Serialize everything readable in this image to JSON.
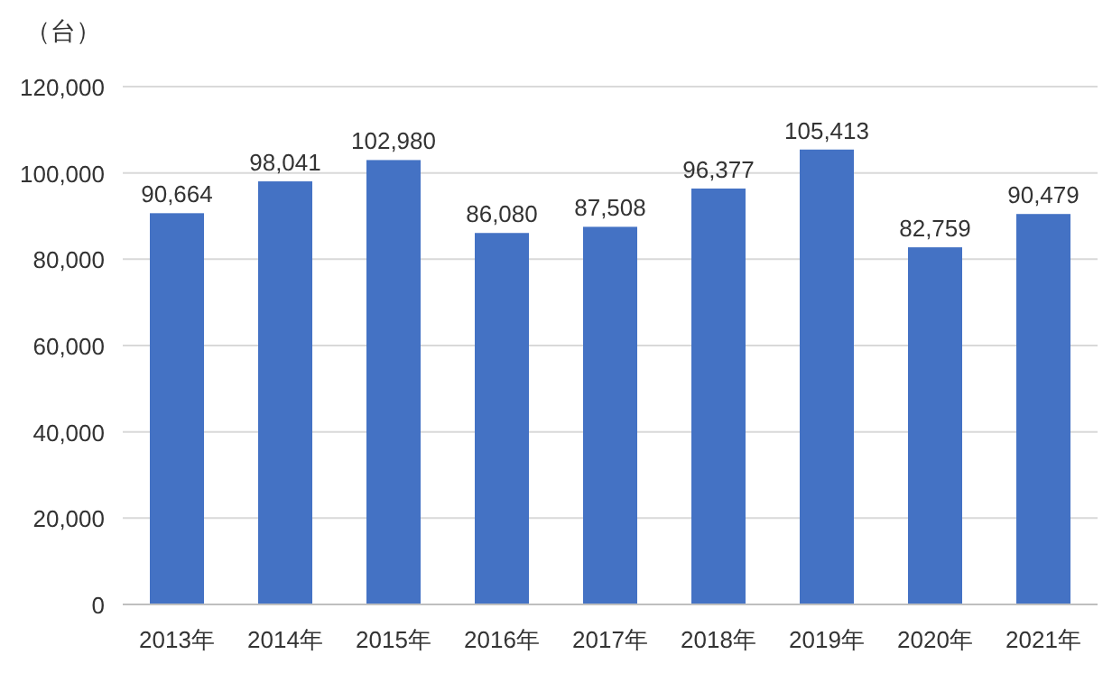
{
  "chart_data": {
    "type": "bar",
    "ylabel": "（台）",
    "categories": [
      "2013年",
      "2014年",
      "2015年",
      "2016年",
      "2017年",
      "2018年",
      "2019年",
      "2020年",
      "2021年"
    ],
    "values": [
      90664,
      98041,
      102980,
      86080,
      87508,
      96377,
      105413,
      82759,
      90479
    ],
    "value_labels": [
      "90,664",
      "98,041",
      "102,980",
      "86,080",
      "87,508",
      "96,377",
      "105,413",
      "82,759",
      "90,479"
    ],
    "color": "#4472c4",
    "ylim": [
      0,
      120000
    ],
    "yticks": [
      0,
      {
        "value": 20000,
        "label": "20,000"
      },
      {
        "value": 40000,
        "label": "40,000"
      },
      {
        "value": 60000,
        "label": "60,000"
      },
      {
        "value": 80000,
        "label": "80,000"
      },
      {
        "value": 100000,
        "label": "100,000"
      },
      {
        "value": 120000,
        "label": "120,000"
      }
    ],
    "grid": "y"
  }
}
